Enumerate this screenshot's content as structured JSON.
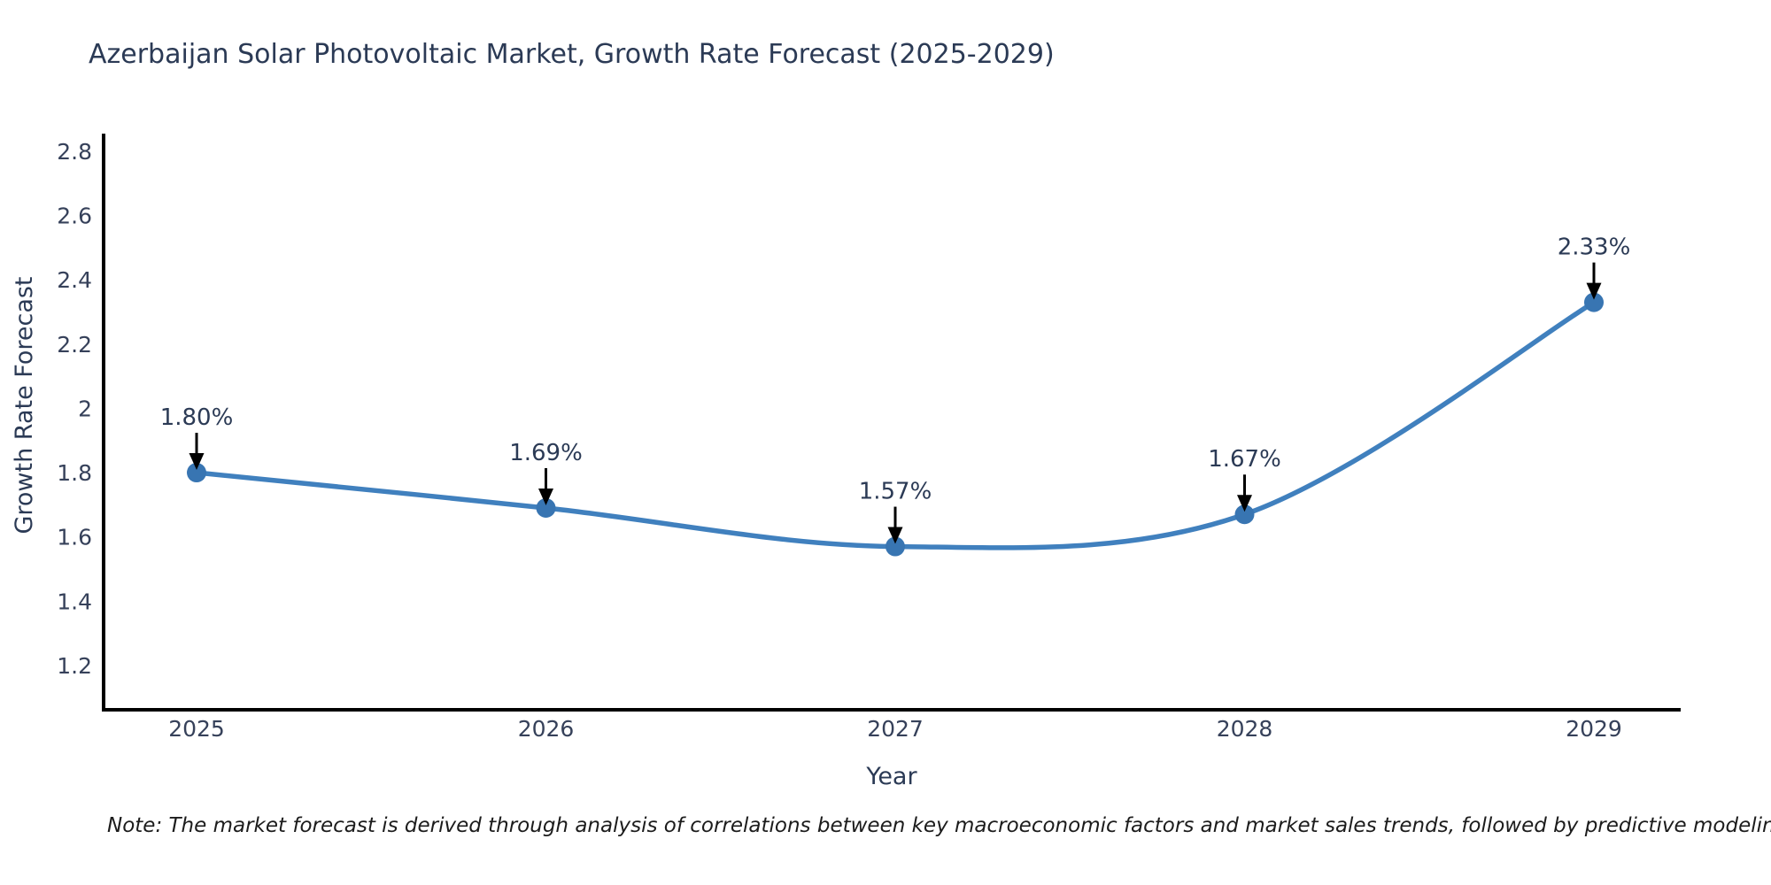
{
  "footer": {
    "note": "Note: The market forecast is derived through analysis of correlations between key macroeconomic factors and market sales trends, followed by predictive modeling to project future sales"
  },
  "chart_data": {
    "type": "line",
    "title": "Azerbaijan Solar Photovoltaic Market, Growth Rate Forecast (2025-2029)",
    "x": [
      2025,
      2026,
      2027,
      2028,
      2029
    ],
    "xtick_labels": [
      "2025",
      "2026",
      "2027",
      "2028",
      "2029"
    ],
    "series": [
      {
        "name": "Growth Rate Forecast",
        "values": [
          1.8,
          1.69,
          1.57,
          1.67,
          2.33
        ]
      }
    ],
    "point_labels": [
      "1.80%",
      "1.69%",
      "1.57%",
      "1.67%",
      "2.33%"
    ],
    "xlabel": "Year",
    "ylabel": "Growth Rate Forecast",
    "yticks": [
      1.2,
      1.4,
      1.6,
      1.8,
      2,
      2.2,
      2.4,
      2.6,
      2.8
    ],
    "ytick_labels": [
      "1.2",
      "1.4",
      "1.6",
      "1.8",
      "2",
      "2.2",
      "2.4",
      "2.6",
      "2.8"
    ],
    "ylim": [
      1.062,
      2.855
    ],
    "grid": false,
    "legend": "none",
    "line_shape": "spline",
    "annotation_style": "label-with-down-arrow",
    "colors": {
      "line": "#4080be",
      "marker": "#3875b2",
      "axis": "#000000",
      "arrow": "#000000",
      "title_text": "#2b3a55",
      "tick_text": "#36415a",
      "note_text": "#1c1c1c"
    }
  }
}
